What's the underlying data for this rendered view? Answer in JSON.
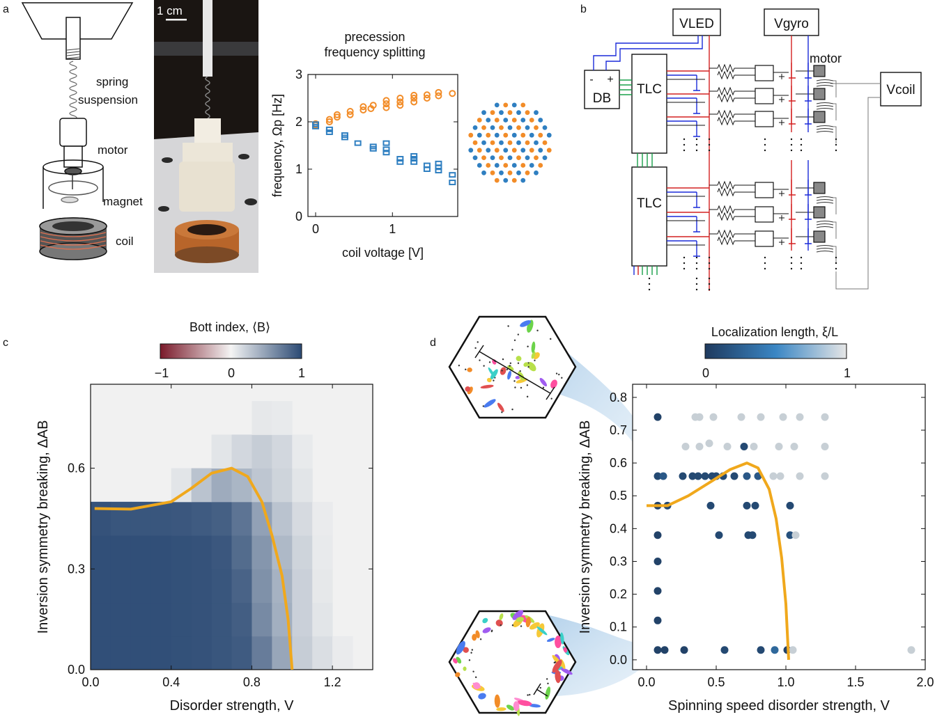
{
  "panel_labels": {
    "a": "a",
    "b": "b",
    "c": "c",
    "d": "d"
  },
  "panel_a": {
    "labels": {
      "spring": "spring",
      "suspension": "suspension",
      "motor": "motor",
      "magnet": "magnet",
      "coil": "coil"
    },
    "scale_bar": "1 cm",
    "chart_title_1": "precession",
    "chart_title_2": "frequency splitting"
  },
  "panel_b": {
    "VLED": "VLED",
    "Vgyro": "Vgyro",
    "Vcoil": "Vcoil",
    "DB": "DB",
    "TLC": "TLC",
    "motor": "motor",
    "minus": "-",
    "plus": "+"
  },
  "panel_c": {
    "colorbar_title": "Bott index, ⟨B⟩",
    "colorbar_ticks": [
      "−1",
      "0",
      "1"
    ]
  },
  "panel_d": {
    "colorbar_title": "Localization length, ξ/L",
    "colorbar_ticks": [
      "0",
      "1"
    ]
  },
  "colors": {
    "orange": "#f28c28",
    "blue": "#2f7fc1",
    "curve": "#f0a81c",
    "navy": "#2b4a74",
    "wire_red": "#d42020",
    "wire_blue": "#1a2ad8",
    "wire_green": "#1aa04a",
    "grey_point": "#c8c8c8"
  },
  "chart_data": [
    {
      "type": "scatter",
      "panel": "a",
      "title": "precession frequency splitting",
      "xlabel": "coil voltage [V]",
      "ylabel": "frequency, Ωp [Hz]",
      "xlim": [
        -0.1,
        1.85
      ],
      "ylim": [
        0,
        3
      ],
      "xticks": [
        "0",
        "1"
      ],
      "yticks": [
        "0",
        "1",
        "2",
        "3"
      ],
      "series": [
        {
          "marker": "circle",
          "color": "#f28c28",
          "points": [
            [
              0,
              1.93
            ],
            [
              0,
              1.96
            ],
            [
              0.18,
              2.0
            ],
            [
              0.18,
              2.05
            ],
            [
              0.28,
              2.1
            ],
            [
              0.28,
              2.15
            ],
            [
              0.45,
              2.15
            ],
            [
              0.45,
              2.22
            ],
            [
              0.62,
              2.25
            ],
            [
              0.62,
              2.32
            ],
            [
              0.72,
              2.28
            ],
            [
              0.75,
              2.35
            ],
            [
              0.92,
              2.3
            ],
            [
              0.92,
              2.38
            ],
            [
              0.92,
              2.45
            ],
            [
              1.1,
              2.35
            ],
            [
              1.1,
              2.42
            ],
            [
              1.1,
              2.5
            ],
            [
              1.28,
              2.42
            ],
            [
              1.28,
              2.5
            ],
            [
              1.28,
              2.56
            ],
            [
              1.45,
              2.5
            ],
            [
              1.45,
              2.57
            ],
            [
              1.6,
              2.55
            ],
            [
              1.6,
              2.62
            ],
            [
              1.78,
              2.6
            ]
          ]
        },
        {
          "marker": "square",
          "color": "#2f7fc1",
          "points": [
            [
              0,
              1.9
            ],
            [
              0,
              1.95
            ],
            [
              0.18,
              1.78
            ],
            [
              0.18,
              1.84
            ],
            [
              0.38,
              1.67
            ],
            [
              0.38,
              1.72
            ],
            [
              0.55,
              1.55
            ],
            [
              0.75,
              1.43
            ],
            [
              0.75,
              1.48
            ],
            [
              0.92,
              1.35
            ],
            [
              0.92,
              1.42
            ],
            [
              0.92,
              1.55
            ],
            [
              1.1,
              1.15
            ],
            [
              1.1,
              1.22
            ],
            [
              1.28,
              1.15
            ],
            [
              1.28,
              1.22
            ],
            [
              1.28,
              1.28
            ],
            [
              1.45,
              1.0
            ],
            [
              1.45,
              1.08
            ],
            [
              1.6,
              0.97
            ],
            [
              1.6,
              1.04
            ],
            [
              1.6,
              1.12
            ],
            [
              1.78,
              0.72
            ],
            [
              1.78,
              0.88
            ]
          ]
        }
      ]
    },
    {
      "type": "heatmap",
      "panel": "c",
      "xlabel": "Disorder strength, V",
      "ylabel": "Inversion symmetry breaking, ΔAB",
      "xlim": [
        0,
        1.4
      ],
      "ylim": [
        0,
        0.85
      ],
      "xticks": [
        "0.0",
        "0.4",
        "0.8",
        "1.2"
      ],
      "yticks": [
        "0.0",
        "0.3",
        "0.6"
      ],
      "cell_width": 0.1,
      "cell_height": 0.1,
      "row_values_bottom_to_top": [
        [
          0.97,
          0.97,
          0.97,
          0.97,
          0.96,
          0.95,
          0.93,
          0.9,
          0.7,
          0.45,
          0.22,
          0.12,
          0.04,
          0.0
        ],
        [
          0.97,
          0.97,
          0.97,
          0.97,
          0.96,
          0.95,
          0.93,
          0.88,
          0.62,
          0.4,
          0.2,
          0.08,
          0.0,
          0.0
        ],
        [
          0.97,
          0.97,
          0.97,
          0.97,
          0.96,
          0.95,
          0.93,
          0.85,
          0.58,
          0.38,
          0.2,
          0.06,
          0.0,
          0.0
        ],
        [
          0.97,
          0.97,
          0.97,
          0.97,
          0.96,
          0.95,
          0.92,
          0.8,
          0.55,
          0.34,
          0.18,
          0.05,
          0.0,
          0.0
        ],
        [
          0.95,
          0.93,
          0.93,
          0.93,
          0.92,
          0.9,
          0.87,
          0.75,
          0.48,
          0.28,
          0.14,
          0.04,
          0.0,
          0.0
        ],
        [
          0.0,
          0.0,
          0.0,
          0.0,
          0.08,
          0.28,
          0.42,
          0.36,
          0.26,
          0.18,
          0.08,
          0.0,
          0.0,
          0.0
        ],
        [
          0.0,
          0.0,
          0.0,
          0.0,
          0.0,
          0.0,
          0.08,
          0.16,
          0.22,
          0.16,
          0.05,
          0.0,
          0.0,
          0.0
        ],
        [
          0.0,
          0.0,
          0.0,
          0.0,
          0.0,
          0.0,
          0.0,
          0.0,
          0.06,
          0.05,
          0.0,
          0.0,
          0.0,
          0.0
        ]
      ],
      "colorbar": {
        "title": "Bott index, ⟨B⟩",
        "range": [
          -1,
          1
        ],
        "ticks": [
          "−1",
          "0",
          "1"
        ]
      },
      "curve": [
        [
          0.02,
          0.48
        ],
        [
          0.2,
          0.478
        ],
        [
          0.4,
          0.5
        ],
        [
          0.5,
          0.54
        ],
        [
          0.6,
          0.585
        ],
        [
          0.7,
          0.6
        ],
        [
          0.78,
          0.575
        ],
        [
          0.85,
          0.5
        ],
        [
          0.9,
          0.4
        ],
        [
          0.95,
          0.28
        ],
        [
          0.98,
          0.15
        ],
        [
          1.0,
          0.0
        ]
      ]
    },
    {
      "type": "scatter",
      "panel": "d",
      "xlabel": "Spinning speed disorder strength, V",
      "ylabel": "Inversion symmetry breaking, ΔAB",
      "xlim": [
        -0.1,
        2.0
      ],
      "ylim": [
        -0.03,
        0.84
      ],
      "xticks": [
        "0.0",
        "0.5",
        "1.0",
        "1.5",
        "2.0"
      ],
      "yticks": [
        "0.0",
        "0.1",
        "0.2",
        "0.3",
        "0.4",
        "0.5",
        "0.6",
        "0.7",
        "0.8"
      ],
      "colorbar": {
        "title": "Localization length, ξ/L",
        "range": [
          0,
          1
        ],
        "ticks": [
          "0",
          "1"
        ]
      },
      "points": [
        [
          0.08,
          0.74,
          0.05
        ],
        [
          0.08,
          0.56,
          0.1
        ],
        [
          0.12,
          0.56,
          0.2
        ],
        [
          0.08,
          0.47,
          0.05
        ],
        [
          0.15,
          0.47,
          0.1
        ],
        [
          0.08,
          0.38,
          0.05
        ],
        [
          0.08,
          0.3,
          0.05
        ],
        [
          0.08,
          0.21,
          0.05
        ],
        [
          0.08,
          0.12,
          0.05
        ],
        [
          0.08,
          0.03,
          0.05
        ],
        [
          0.13,
          0.03,
          0.05
        ],
        [
          0.27,
          0.03,
          0.05
        ],
        [
          0.26,
          0.56,
          0.1
        ],
        [
          0.33,
          0.56,
          0.1
        ],
        [
          0.37,
          0.56,
          0.1
        ],
        [
          0.42,
          0.56,
          0.1
        ],
        [
          0.47,
          0.56,
          0.1
        ],
        [
          0.5,
          0.56,
          0.1
        ],
        [
          0.55,
          0.56,
          0.1
        ],
        [
          0.63,
          0.56,
          0.1
        ],
        [
          0.72,
          0.56,
          0.2
        ],
        [
          0.46,
          0.47,
          0.1
        ],
        [
          0.52,
          0.38,
          0.1
        ],
        [
          0.56,
          0.03,
          0.1
        ],
        [
          0.72,
          0.47,
          0.1
        ],
        [
          0.78,
          0.47,
          0.1
        ],
        [
          0.73,
          0.38,
          0.1
        ],
        [
          0.76,
          0.38,
          0.1
        ],
        [
          0.7,
          0.65,
          0.1
        ],
        [
          0.8,
          0.56,
          0.2
        ],
        [
          0.91,
          0.56,
          0.95
        ],
        [
          0.96,
          0.56,
          0.95
        ],
        [
          0.82,
          0.03,
          0.1
        ],
        [
          0.92,
          0.03,
          0.3
        ],
        [
          1.01,
          0.03,
          0.05
        ],
        [
          1.03,
          0.47,
          0.1
        ],
        [
          1.03,
          0.38,
          0.15
        ],
        [
          1.07,
          0.38,
          0.95
        ],
        [
          1.05,
          0.03,
          0.95
        ],
        [
          0.35,
          0.74,
          0.95
        ],
        [
          0.38,
          0.74,
          0.95
        ],
        [
          0.48,
          0.74,
          0.95
        ],
        [
          0.68,
          0.74,
          0.95
        ],
        [
          0.82,
          0.74,
          0.95
        ],
        [
          0.98,
          0.74,
          0.95
        ],
        [
          1.1,
          0.74,
          0.95
        ],
        [
          1.28,
          0.74,
          0.95
        ],
        [
          0.28,
          0.65,
          0.95
        ],
        [
          0.38,
          0.65,
          0.95
        ],
        [
          0.45,
          0.66,
          0.95
        ],
        [
          0.58,
          0.65,
          0.95
        ],
        [
          0.77,
          0.65,
          0.95
        ],
        [
          0.95,
          0.65,
          0.95
        ],
        [
          1.06,
          0.65,
          0.95
        ],
        [
          1.28,
          0.65,
          0.95
        ],
        [
          1.1,
          0.56,
          0.95
        ],
        [
          1.28,
          0.56,
          0.95
        ],
        [
          1.9,
          0.03,
          0.95
        ]
      ],
      "curve": [
        [
          0.0,
          0.47
        ],
        [
          0.15,
          0.47
        ],
        [
          0.3,
          0.5
        ],
        [
          0.45,
          0.54
        ],
        [
          0.6,
          0.58
        ],
        [
          0.72,
          0.6
        ],
        [
          0.8,
          0.585
        ],
        [
          0.88,
          0.52
        ],
        [
          0.93,
          0.43
        ],
        [
          0.97,
          0.31
        ],
        [
          1.0,
          0.17
        ],
        [
          1.02,
          0.0
        ]
      ]
    }
  ]
}
